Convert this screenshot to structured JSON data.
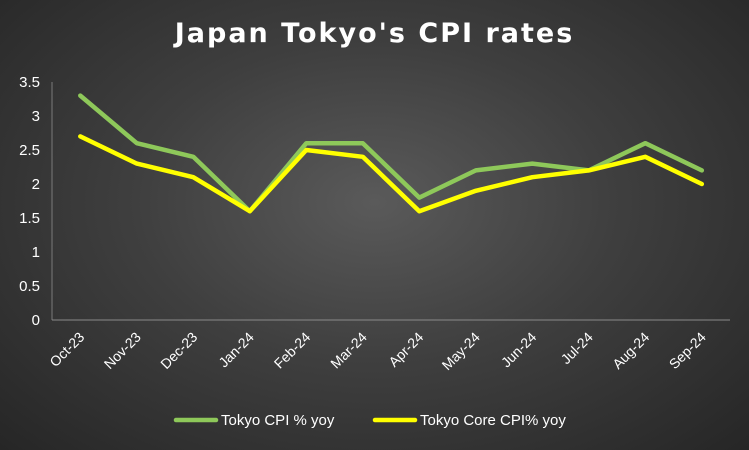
{
  "chart_data": {
    "type": "line",
    "title": "Japan Tokyo's CPI rates",
    "xlabel": "",
    "ylabel": "",
    "categories": [
      "Oct-23",
      "Nov-23",
      "Dec-23",
      "Jan-24",
      "Feb-24",
      "Mar-24",
      "Apr-24",
      "May-24",
      "Jun-24",
      "Jul-24",
      "Aug-24",
      "Sep-24"
    ],
    "ylim": [
      0,
      3.5
    ],
    "yticks": [
      "0",
      "0.5",
      "1",
      "1.5",
      "2",
      "2.5",
      "3",
      "3.5"
    ],
    "grid": false,
    "legend_position": "bottom",
    "series": [
      {
        "name": "Tokyo CPI % yoy",
        "color": "#8ec85a",
        "values": [
          3.3,
          2.6,
          2.4,
          1.6,
          2.6,
          2.6,
          1.8,
          2.2,
          2.3,
          2.2,
          2.6,
          2.2
        ]
      },
      {
        "name": "Tokyo Core CPI% yoy",
        "color": "#ffff00",
        "values": [
          2.7,
          2.3,
          2.1,
          1.6,
          2.5,
          2.4,
          1.6,
          1.9,
          2.1,
          2.2,
          2.4,
          2.0
        ]
      }
    ]
  }
}
